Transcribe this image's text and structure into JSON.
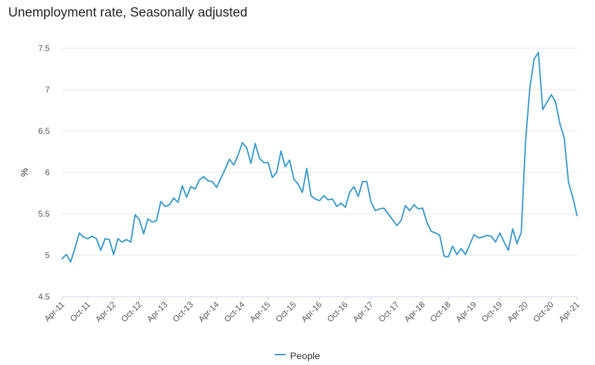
{
  "chart_data": {
    "type": "line",
    "title": "Unemployment rate, Seasonally adjusted",
    "ylabel": "%",
    "xlabel": "",
    "ylim": [
      4.5,
      7.5
    ],
    "yticks": [
      "4.5",
      "5",
      "5.5",
      "6",
      "6.5",
      "7",
      "7.5"
    ],
    "ytick_values": [
      4.5,
      5,
      5.5,
      6,
      6.5,
      7,
      7.5
    ],
    "start_month": "2011-04",
    "xticks": [
      "Apr-11",
      "Oct-11",
      "Apr-12",
      "Oct-12",
      "Apr-13",
      "Oct-13",
      "Apr-14",
      "Oct-14",
      "Apr-15",
      "Oct-15",
      "Apr-16",
      "Oct-16",
      "Apr-17",
      "Oct-17",
      "Apr-18",
      "Oct-18",
      "Apr-19",
      "Oct-19",
      "Apr-20",
      "Oct-20",
      "Apr-21"
    ],
    "grid": true,
    "legend_position": "bottom-center",
    "colors": {
      "series": "#3a9ac9",
      "grid": "#e6e6e6",
      "axis": "#ccd6eb",
      "tick_text": "#555555"
    },
    "series": [
      {
        "name": "People",
        "values": [
          4.96,
          5.01,
          4.92,
          5.09,
          5.27,
          5.22,
          5.2,
          5.23,
          5.2,
          5.06,
          5.2,
          5.19,
          5.01,
          5.2,
          5.16,
          5.19,
          5.16,
          5.49,
          5.43,
          5.26,
          5.44,
          5.4,
          5.42,
          5.65,
          5.59,
          5.61,
          5.69,
          5.64,
          5.84,
          5.7,
          5.83,
          5.8,
          5.91,
          5.95,
          5.9,
          5.89,
          5.82,
          5.93,
          6.04,
          6.16,
          6.09,
          6.21,
          6.36,
          6.3,
          6.11,
          6.35,
          6.17,
          6.12,
          6.12,
          5.94,
          6.0,
          6.26,
          6.07,
          6.15,
          5.92,
          5.86,
          5.76,
          6.05,
          5.72,
          5.68,
          5.66,
          5.72,
          5.67,
          5.68,
          5.59,
          5.63,
          5.58,
          5.76,
          5.83,
          5.71,
          5.89,
          5.89,
          5.64,
          5.54,
          5.56,
          5.57,
          5.5,
          5.43,
          5.36,
          5.42,
          5.6,
          5.54,
          5.61,
          5.56,
          5.57,
          5.4,
          5.29,
          5.27,
          5.24,
          4.99,
          4.98,
          5.11,
          5.01,
          5.08,
          5.01,
          5.13,
          5.25,
          5.21,
          5.22,
          5.24,
          5.23,
          5.16,
          5.27,
          5.16,
          5.06,
          5.32,
          5.14,
          5.28,
          6.38,
          7.02,
          7.37,
          7.45,
          6.76,
          6.85,
          6.94,
          6.85,
          6.59,
          6.42,
          5.88,
          5.7,
          5.48
        ]
      }
    ]
  },
  "legend": {
    "label": "People"
  }
}
